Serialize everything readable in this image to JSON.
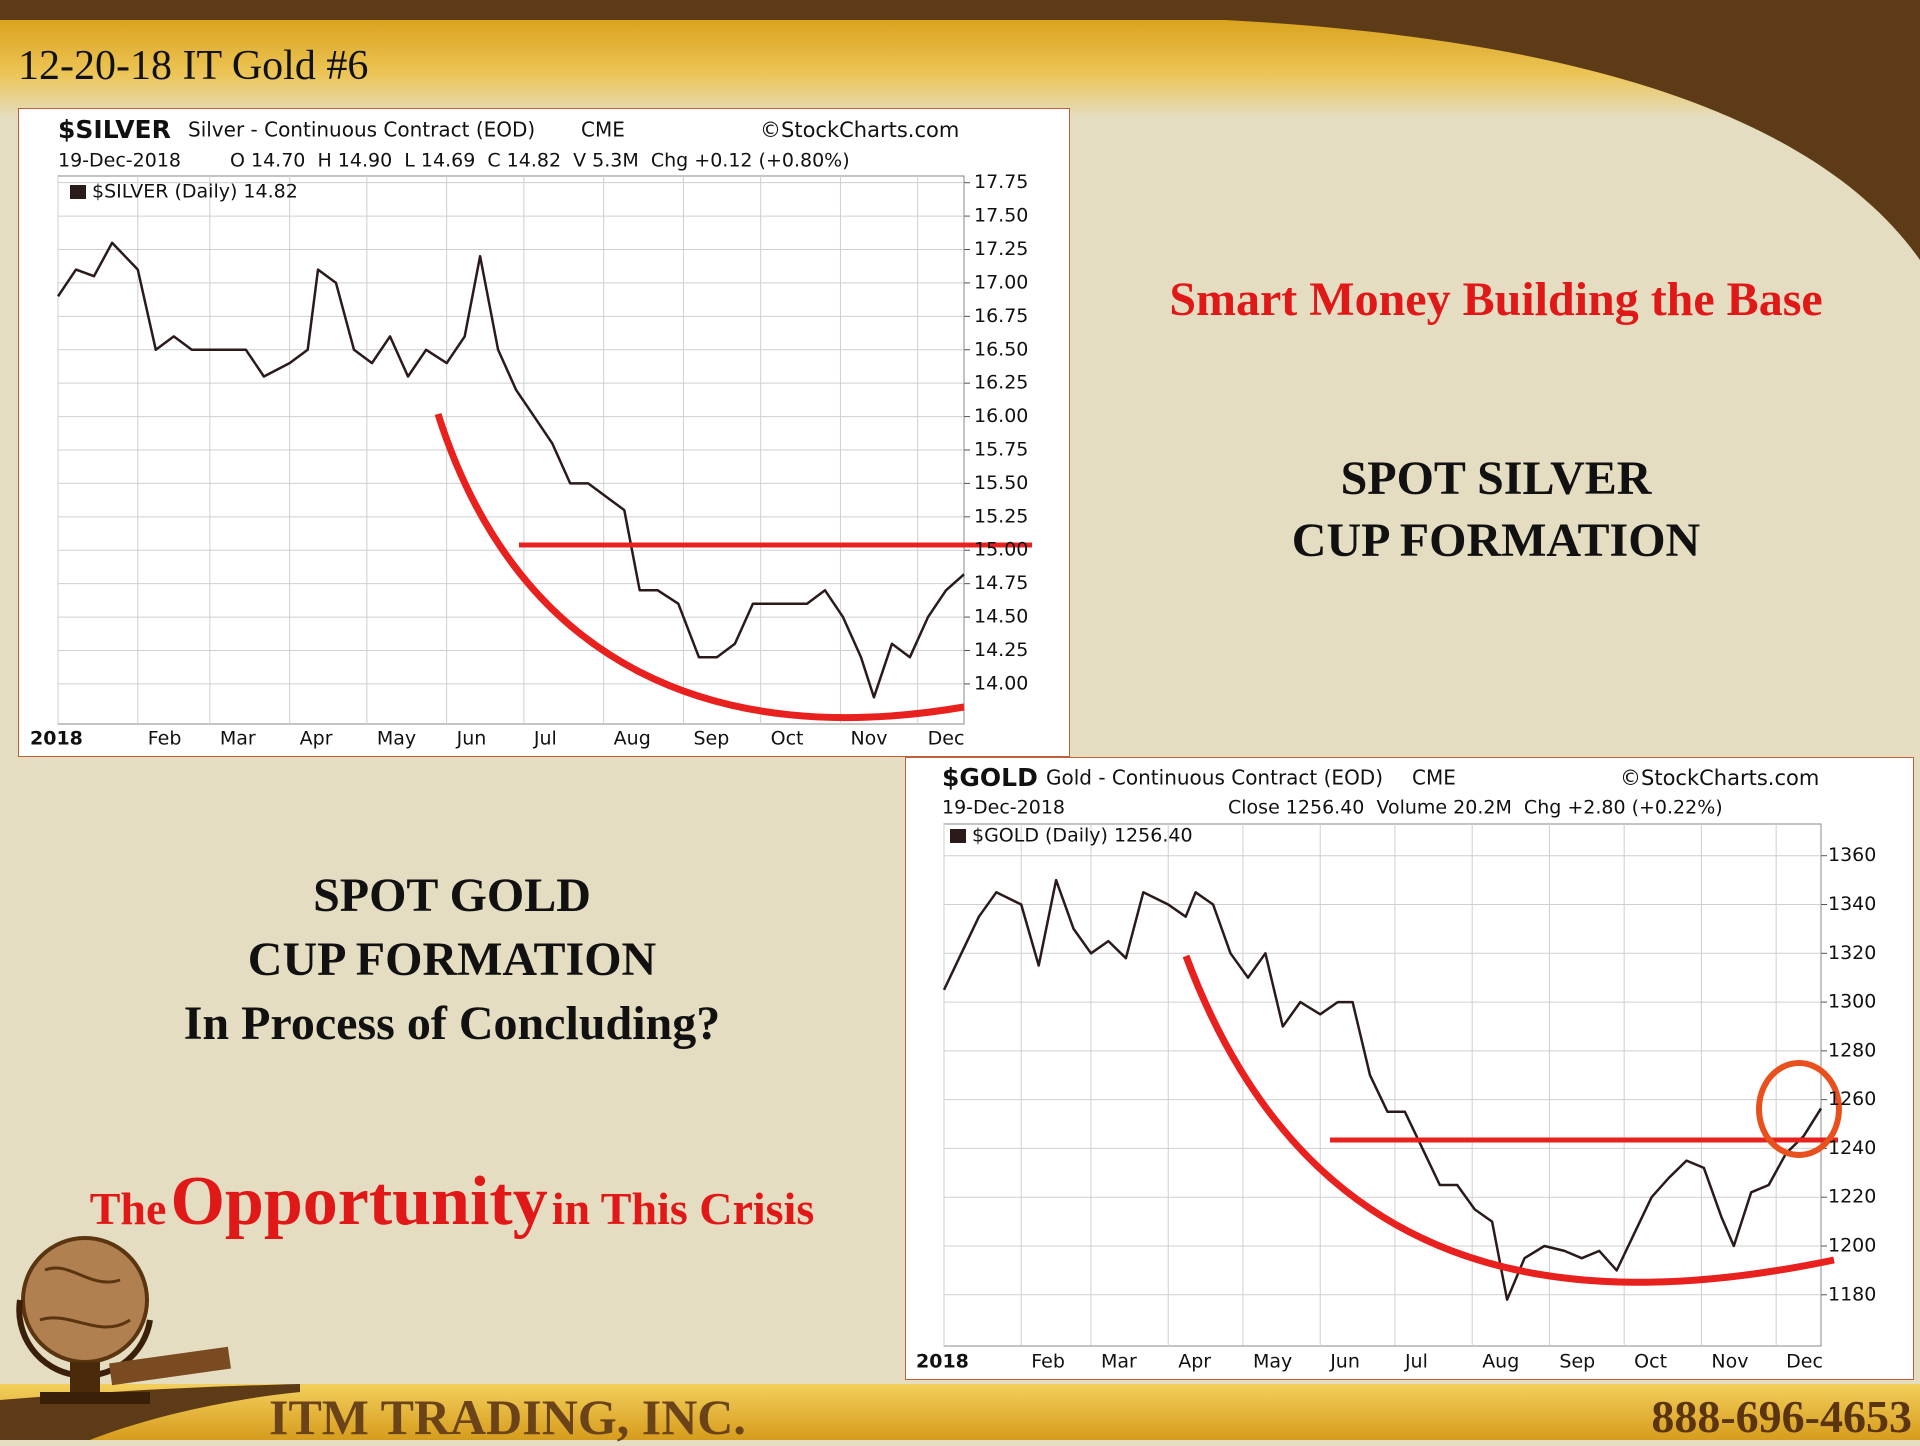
{
  "slide": {
    "header": "12-20-18 IT Gold #6",
    "silver_heading": "Smart Money Building the Base",
    "silver_caption": [
      "SPOT SILVER",
      "CUP FORMATION"
    ],
    "gold_caption": [
      "SPOT GOLD",
      "CUP FORMATION",
      "In Process of Concluding?"
    ],
    "opportunity": [
      "The",
      "Opportunity",
      "in This Crisis"
    ],
    "company": "ITM TRADING, INC.",
    "phone": "888-696-4653"
  },
  "chart_data": [
    {
      "type": "line",
      "title": "$SILVER",
      "subtitle": "Silver - Continuous Contract (EOD)",
      "exchange": "CME",
      "source": "©StockCharts.com",
      "date": "19-Dec-2018",
      "quote": "O 14.70  H 14.90  L 14.69  C 14.82  V 5.3M  Chg +0.12 (+0.80%)",
      "x": [
        0,
        7,
        14,
        21,
        31,
        38,
        45,
        52,
        59,
        66,
        73,
        80,
        90,
        97,
        101,
        108,
        115,
        122,
        129,
        136,
        143,
        151,
        158,
        164,
        171,
        178,
        185,
        192,
        199,
        206,
        213,
        220,
        226,
        233,
        241,
        249,
        256,
        263,
        270,
        277,
        284,
        291,
        298,
        305,
        312,
        317,
        324,
        331,
        338,
        345,
        352
      ],
      "series": [
        {
          "name": "$SILVER (Daily) 14.82",
          "color": "#2a1a1a",
          "values": [
            16.9,
            17.1,
            17.05,
            17.3,
            17.1,
            16.5,
            16.6,
            16.5,
            16.5,
            16.5,
            16.5,
            16.3,
            16.4,
            16.5,
            17.1,
            17.0,
            16.5,
            16.4,
            16.6,
            16.3,
            16.5,
            16.4,
            16.6,
            17.2,
            16.5,
            16.2,
            16.0,
            15.8,
            15.5,
            15.5,
            15.4,
            15.3,
            14.7,
            14.7,
            14.6,
            14.2,
            14.2,
            14.3,
            14.6,
            14.6,
            14.6,
            14.6,
            14.7,
            14.5,
            14.2,
            13.9,
            14.3,
            14.2,
            14.5,
            14.7,
            14.82
          ]
        }
      ],
      "xlim": [
        0,
        352
      ],
      "xticks": [
        {
          "value": 0,
          "label": "2018"
        },
        {
          "value": 31,
          "label": "Feb"
        },
        {
          "value": 59,
          "label": "Mar"
        },
        {
          "value": 90,
          "label": "Apr"
        },
        {
          "value": 120,
          "label": "May"
        },
        {
          "value": 151,
          "label": "Jun"
        },
        {
          "value": 181,
          "label": "Jul"
        },
        {
          "value": 212,
          "label": "Aug"
        },
        {
          "value": 243,
          "label": "Sep"
        },
        {
          "value": 273,
          "label": "Oct"
        },
        {
          "value": 304,
          "label": "Nov"
        },
        {
          "value": 334,
          "label": "Dec"
        }
      ],
      "ylim": [
        13.7,
        17.8
      ],
      "yticks": [
        {
          "value": 14,
          "label": "14.00"
        },
        14.25,
        {
          "value": 14.5,
          "label": "14.50"
        },
        14.75,
        {
          "value": 15,
          "label": "15.00"
        },
        15.25,
        {
          "value": 15.5,
          "label": "15.50"
        },
        15.75,
        {
          "value": 16,
          "label": "16.00"
        },
        16.25,
        {
          "value": 16.5,
          "label": "16.50"
        },
        16.75,
        {
          "value": 17,
          "label": "17.00"
        },
        17.25,
        {
          "value": 17.5,
          "label": "17.50"
        },
        17.75
      ],
      "grid": true
    },
    {
      "type": "line",
      "title": "$GOLD",
      "subtitle": "Gold - Continuous Contract (EOD)",
      "exchange": "CME",
      "source": "©StockCharts.com",
      "date": "19-Dec-2018",
      "quote": "Close 1256.40  Volume 20.2M  Chg +2.80 (+0.22%)",
      "x": [
        0,
        7,
        14,
        21,
        31,
        38,
        45,
        52,
        59,
        66,
        73,
        80,
        90,
        97,
        101,
        108,
        115,
        122,
        129,
        136,
        143,
        151,
        158,
        164,
        171,
        178,
        185,
        192,
        199,
        206,
        213,
        220,
        226,
        233,
        241,
        249,
        256,
        263,
        270,
        277,
        284,
        291,
        298,
        305,
        312,
        317,
        324,
        331,
        338,
        345,
        352
      ],
      "series": [
        {
          "name": "$GOLD (Daily) 1256.40",
          "color": "#2a1a1a",
          "values": [
            1305,
            1320,
            1335,
            1345,
            1340,
            1315,
            1350,
            1330,
            1320,
            1325,
            1318,
            1345,
            1340,
            1335,
            1345,
            1340,
            1320,
            1310,
            1320,
            1290,
            1300,
            1295,
            1300,
            1300,
            1270,
            1255,
            1255,
            1240,
            1225,
            1225,
            1215,
            1210,
            1178,
            1195,
            1200,
            1198,
            1195,
            1198,
            1190,
            1205,
            1220,
            1228,
            1235,
            1232,
            1212,
            1200,
            1222,
            1225,
            1238,
            1245,
            1256.4
          ]
        }
      ],
      "xlim": [
        0,
        352
      ],
      "xticks": [
        {
          "value": 0,
          "label": "2018"
        },
        {
          "value": 31,
          "label": "Feb"
        },
        {
          "value": 59,
          "label": "Mar"
        },
        {
          "value": 90,
          "label": "Apr"
        },
        {
          "value": 120,
          "label": "May"
        },
        {
          "value": 151,
          "label": "Jun"
        },
        {
          "value": 181,
          "label": "Jul"
        },
        {
          "value": 212,
          "label": "Aug"
        },
        {
          "value": 243,
          "label": "Sep"
        },
        {
          "value": 273,
          "label": "Oct"
        },
        {
          "value": 304,
          "label": "Nov"
        },
        {
          "value": 334,
          "label": "Dec"
        }
      ],
      "ylim": [
        1159,
        1373
      ],
      "yticks": [
        1180,
        1200,
        1220,
        1240,
        1260,
        1280,
        1300,
        1320,
        1340,
        1360
      ],
      "grid": true
    }
  ]
}
